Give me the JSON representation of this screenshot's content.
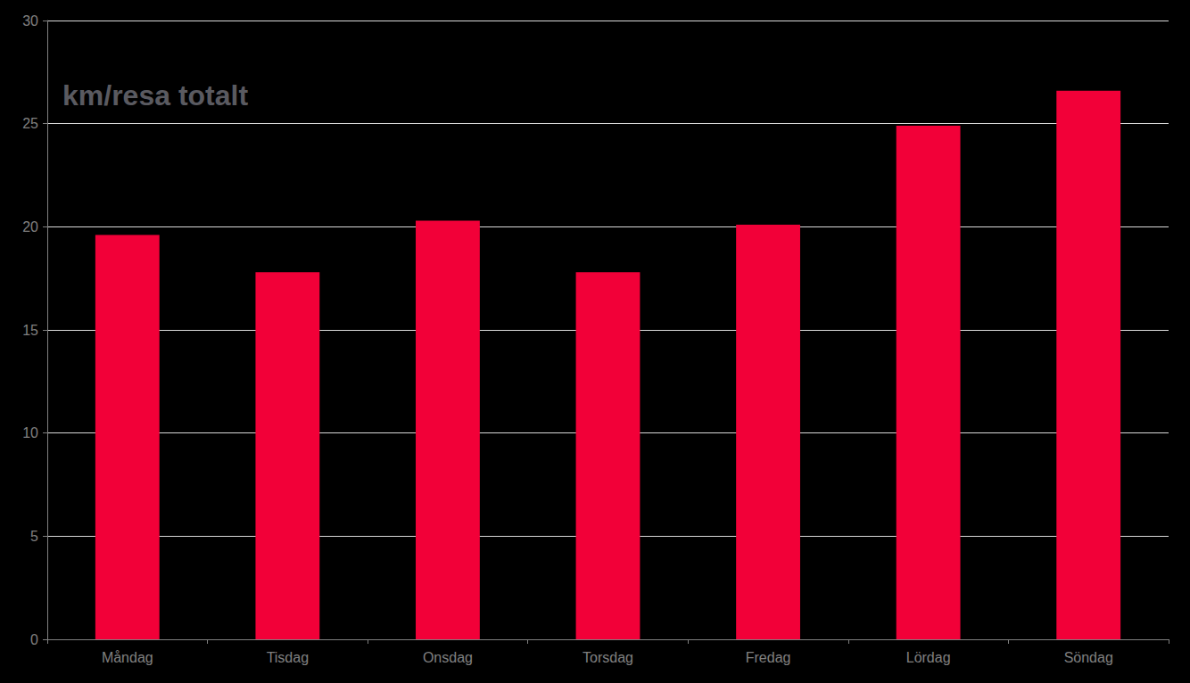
{
  "chart_data": {
    "type": "bar",
    "title": "km/resa totalt",
    "categories": [
      "Måndag",
      "Tisdag",
      "Onsdag",
      "Torsdag",
      "Fredag",
      "Lördag",
      "Söndag"
    ],
    "values": [
      19.6,
      17.8,
      20.3,
      17.8,
      20.1,
      24.9,
      26.6
    ],
    "color": "#f20038",
    "ylim": [
      0,
      30
    ],
    "yticks": [
      0,
      5,
      10,
      15,
      20,
      25,
      30
    ],
    "grid": true
  }
}
